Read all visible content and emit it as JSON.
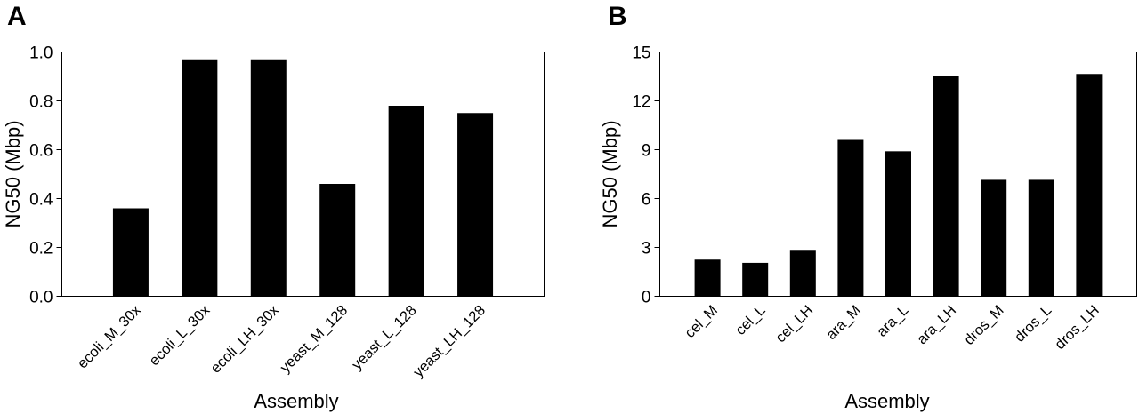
{
  "chart_data": [
    {
      "type": "bar",
      "panel": "A",
      "categories": [
        "ecoli_M_30x",
        "ecoli_L_30x",
        "ecoli_LH_30x",
        "yeast_M_128",
        "yeast_L_128",
        "yeast_LH_128"
      ],
      "values": [
        0.36,
        0.97,
        0.97,
        0.46,
        0.78,
        0.75
      ],
      "title": "",
      "xlabel": "Assembly",
      "ylabel": "NG50 (Mbp)",
      "ylim": [
        0,
        1.0
      ],
      "yticks": [
        "0.0",
        "0.2",
        "0.4",
        "0.6",
        "0.8",
        "1.0"
      ],
      "bar_color": "#000000",
      "grid": false,
      "legend": "none"
    },
    {
      "type": "bar",
      "panel": "B",
      "categories": [
        "cel_M",
        "cel_L",
        "cel_LH",
        "ara_M",
        "ara_L",
        "ara_LH",
        "dros_M",
        "dros_L",
        "dros_LH"
      ],
      "values": [
        2.25,
        2.05,
        2.85,
        9.6,
        8.9,
        13.5,
        7.15,
        7.15,
        13.65
      ],
      "title": "",
      "xlabel": "Assembly",
      "ylabel": "NG50 (Mbp)",
      "ylim": [
        0,
        15
      ],
      "yticks": [
        "0",
        "3",
        "6",
        "9",
        "12",
        "15"
      ],
      "bar_color": "#000000",
      "grid": false,
      "legend": "none"
    }
  ]
}
